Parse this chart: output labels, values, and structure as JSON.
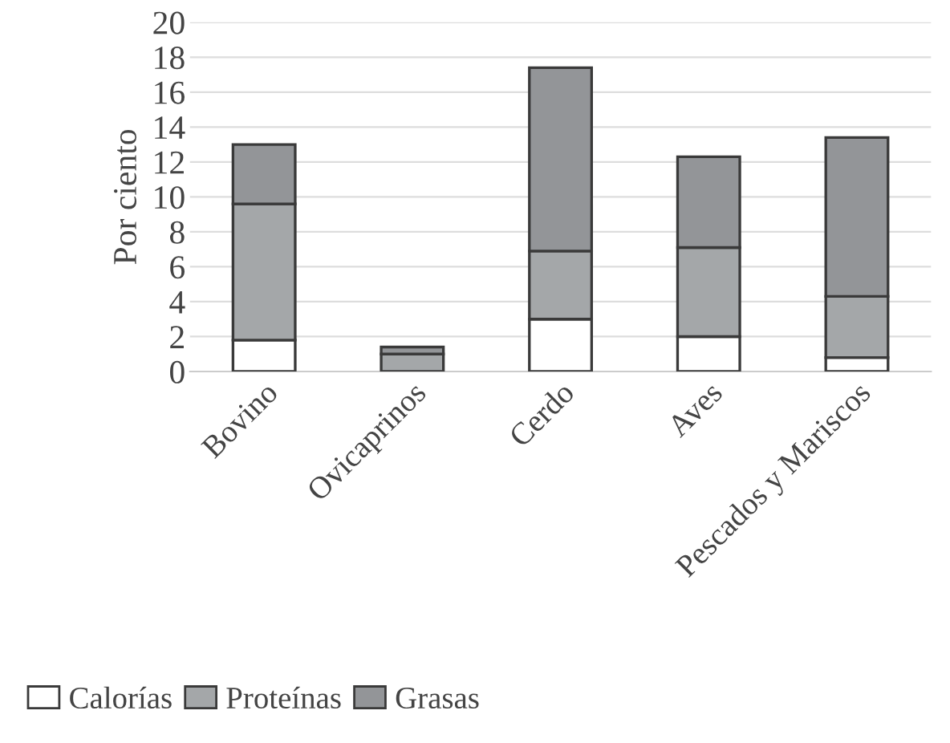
{
  "chart_data": {
    "type": "bar",
    "stacked": true,
    "ylabel": "Por ciento",
    "categories": [
      "Bovino",
      "Ovicaprinos",
      "Cerdo",
      "Aves",
      "Pescados y Mariscos"
    ],
    "series": [
      {
        "name": "Calorías",
        "color": "#ffffff",
        "values": [
          1.8,
          null,
          3.0,
          2.0,
          0.8
        ]
      },
      {
        "name": "Proteínas",
        "color": "#a4a7a9",
        "values": [
          7.8,
          1.0,
          3.9,
          5.1,
          3.5
        ]
      },
      {
        "name": "Grasas",
        "color": "#939598",
        "values": [
          3.4,
          0.4,
          10.5,
          5.2,
          9.1
        ]
      }
    ],
    "ylim": [
      0,
      20
    ],
    "yticks": [
      0,
      2,
      4,
      6,
      8,
      10,
      12,
      14,
      16,
      18,
      20
    ],
    "grid": "y",
    "legend": "bottom left"
  }
}
